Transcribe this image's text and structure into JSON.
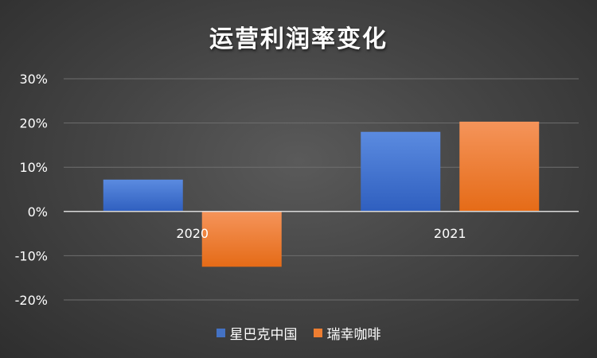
{
  "chart_data": {
    "type": "bar",
    "title": "运营利润率变化",
    "categories": [
      "2020",
      "2021"
    ],
    "series": [
      {
        "name": "星巴克中国",
        "values": [
          7.2,
          18.0
        ],
        "color": "#4472c4"
      },
      {
        "name": "瑞幸咖啡",
        "values": [
          -12.5,
          20.3
        ],
        "color": "#ed7d31"
      }
    ],
    "ylim": [
      -20,
      30
    ],
    "yticks": [
      30,
      20,
      10,
      0,
      -10,
      -20
    ],
    "ytick_labels": [
      "30%",
      "20%",
      "10%",
      "0%",
      "-10%",
      "-20%"
    ],
    "grid": true,
    "legend_position": "bottom"
  }
}
